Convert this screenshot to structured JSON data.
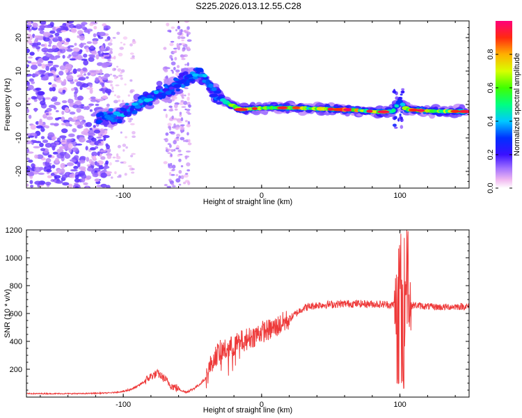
{
  "title": "S225.2026.013.12.55.C28",
  "chart_data": [
    {
      "type": "heatmap",
      "name": "spectrogram",
      "xlabel": "Height of straight line (km)",
      "ylabel": "Frequency (Hz)",
      "xlim": [
        -170,
        150
      ],
      "ylim": [
        -25,
        25
      ],
      "xticks": [
        -100,
        0,
        100
      ],
      "xtick_labels": [
        "-100",
        "0",
        "100"
      ],
      "yticks": [
        -20,
        -10,
        0,
        10,
        20
      ],
      "ytick_labels": [
        "-20",
        "-10",
        "0",
        "10",
        "20"
      ],
      "colorbar": {
        "label": "Normalized spectral amplitude",
        "range": [
          0.0,
          1.0
        ],
        "ticks": [
          0.0,
          0.2,
          0.4,
          0.6,
          0.8
        ],
        "tick_labels": [
          "0.0",
          "0.2",
          "0.4",
          "0.6",
          "0.8"
        ],
        "colors": [
          "#ffffff",
          "#f0b8f0",
          "#a070ff",
          "#5a1ae0",
          "#0000ff",
          "#00c8ff",
          "#00ff60",
          "#c8ff00",
          "#ffc000",
          "#ff3c00",
          "#ff007a"
        ]
      },
      "ridge": {
        "x": [
          -115,
          -105,
          -95,
          -85,
          -75,
          -65,
          -55,
          -45,
          -40,
          -35,
          -25,
          -15,
          -5,
          5,
          15,
          25,
          35,
          45,
          55,
          65,
          75,
          85,
          95,
          100,
          105,
          115,
          125,
          135,
          145
        ],
        "y": [
          -4,
          -3.5,
          -1,
          1,
          3,
          5,
          7.5,
          9.5,
          8,
          3.5,
          0.5,
          -1.5,
          -1.2,
          -1.0,
          -1.0,
          -1.0,
          -1.2,
          -1.3,
          -1.5,
          -1.6,
          -1.9,
          -2.3,
          -2.0,
          1.0,
          -1.5,
          -1.8,
          -2.0,
          -2.0,
          -2.1
        ],
        "amplitude": [
          0.45,
          0.4,
          0.35,
          0.4,
          0.35,
          0.3,
          0.35,
          0.4,
          0.45,
          0.3,
          0.5,
          0.8,
          0.7,
          0.7,
          0.75,
          0.7,
          0.65,
          0.75,
          0.9,
          0.85,
          0.7,
          0.8,
          0.6,
          0.5,
          0.85,
          0.8,
          0.7,
          0.75,
          0.8
        ]
      }
    },
    {
      "type": "line",
      "name": "snr",
      "xlabel": "Height of straight line (km)",
      "ylabel": "SNR (10 * v/v)",
      "xlim": [
        -170,
        150
      ],
      "ylim": [
        0,
        1200
      ],
      "xticks": [
        -100,
        0,
        100
      ],
      "xtick_labels": [
        "-100",
        "0",
        "100"
      ],
      "yticks": [
        200,
        400,
        600,
        800,
        1000,
        1200
      ],
      "ytick_labels": [
        "200",
        "400",
        "600",
        "800",
        "1000",
        "1200"
      ],
      "color": "#ee3a3a",
      "series": [
        {
          "name": "SNR",
          "x": [
            -170,
            -150,
            -130,
            -110,
            -100,
            -95,
            -90,
            -85,
            -80,
            -75,
            -70,
            -65,
            -60,
            -55,
            -50,
            -45,
            -40,
            -35,
            -30,
            -25,
            -20,
            -15,
            -10,
            -5,
            0,
            5,
            10,
            15,
            20,
            25,
            30,
            40,
            50,
            60,
            70,
            80,
            90,
            95,
            98,
            100,
            102,
            103,
            104,
            106,
            110,
            120,
            130,
            140,
            150
          ],
          "y": [
            25,
            25,
            25,
            30,
            40,
            55,
            75,
            110,
            150,
            170,
            130,
            80,
            60,
            35,
            55,
            90,
            140,
            280,
            330,
            340,
            370,
            400,
            420,
            440,
            470,
            480,
            500,
            530,
            560,
            600,
            640,
            660,
            665,
            670,
            670,
            668,
            665,
            660,
            700,
            1050,
            600,
            120,
            900,
            650,
            660,
            650,
            645,
            650,
            650
          ]
        }
      ]
    }
  ]
}
